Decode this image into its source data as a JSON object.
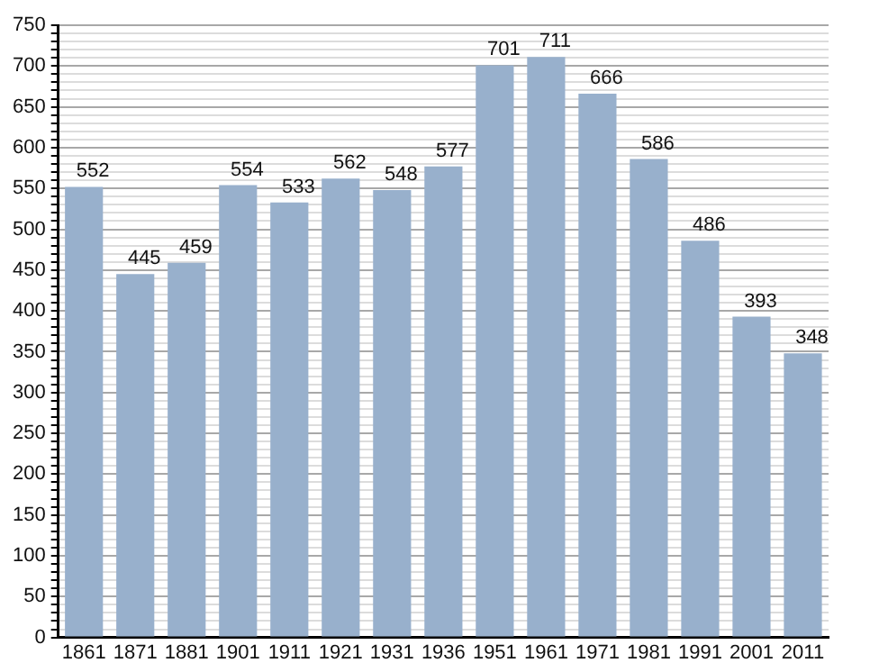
{
  "chart_data": {
    "type": "bar",
    "categories": [
      "1861",
      "1871",
      "1881",
      "1901",
      "1911",
      "1921",
      "1931",
      "1936",
      "1951",
      "1961",
      "1971",
      "1981",
      "1991",
      "2001",
      "2011"
    ],
    "values": [
      552,
      445,
      459,
      554,
      533,
      562,
      548,
      577,
      701,
      711,
      666,
      586,
      486,
      393,
      348
    ],
    "color": "#98b0cc",
    "data_labels": true,
    "grid": "y",
    "ylim": [
      0,
      750
    ],
    "yticks": [
      0,
      {
        "value": 10,
        "label": null
      },
      {
        "value": 20,
        "label": null
      },
      {
        "value": 30,
        "label": null
      },
      {
        "value": 40,
        "label": null
      },
      50,
      {
        "value": 60,
        "label": null
      },
      {
        "value": 70,
        "label": null
      },
      {
        "value": 80,
        "label": null
      },
      {
        "value": 90,
        "label": null
      },
      100,
      {
        "value": 110,
        "label": null
      },
      {
        "value": 120,
        "label": null
      },
      {
        "value": 130,
        "label": null
      },
      {
        "value": 140,
        "label": null
      },
      150,
      {
        "value": 160,
        "label": null
      },
      {
        "value": 170,
        "label": null
      },
      {
        "value": 180,
        "label": null
      },
      {
        "value": 190,
        "label": null
      },
      200,
      {
        "value": 210,
        "label": null
      },
      {
        "value": 220,
        "label": null
      },
      {
        "value": 230,
        "label": null
      },
      {
        "value": 240,
        "label": null
      },
      250,
      {
        "value": 260,
        "label": null
      },
      {
        "value": 270,
        "label": null
      },
      {
        "value": 280,
        "label": null
      },
      {
        "value": 290,
        "label": null
      },
      300,
      {
        "value": 310,
        "label": null
      },
      {
        "value": 320,
        "label": null
      },
      {
        "value": 330,
        "label": null
      },
      {
        "value": 340,
        "label": null
      },
      350,
      {
        "value": 360,
        "label": null
      },
      {
        "value": 370,
        "label": null
      },
      {
        "value": 380,
        "label": null
      },
      {
        "value": 390,
        "label": null
      },
      400,
      {
        "value": 410,
        "label": null
      },
      {
        "value": 420,
        "label": null
      },
      {
        "value": 430,
        "label": null
      },
      {
        "value": 440,
        "label": null
      },
      450,
      {
        "value": 460,
        "label": null
      },
      {
        "value": 470,
        "label": null
      },
      {
        "value": 480,
        "label": null
      },
      {
        "value": 490,
        "label": null
      },
      500,
      {
        "value": 510,
        "label": null
      },
      {
        "value": 520,
        "label": null
      },
      {
        "value": 530,
        "label": null
      },
      {
        "value": 540,
        "label": null
      },
      550,
      {
        "value": 560,
        "label": null
      },
      {
        "value": 570,
        "label": null
      },
      {
        "value": 580,
        "label": null
      },
      {
        "value": 590,
        "label": null
      },
      600,
      {
        "value": 610,
        "label": null
      },
      {
        "value": 620,
        "label": null
      },
      {
        "value": 630,
        "label": null
      },
      {
        "value": 640,
        "label": null
      },
      650,
      {
        "value": 660,
        "label": null
      },
      {
        "value": 670,
        "label": null
      },
      {
        "value": 680,
        "label": null
      },
      {
        "value": 690,
        "label": null
      },
      700,
      {
        "value": 710,
        "label": null
      },
      {
        "value": 720,
        "label": null
      },
      {
        "value": 730,
        "label": null
      },
      {
        "value": 740,
        "label": null
      },
      750
    ]
  }
}
